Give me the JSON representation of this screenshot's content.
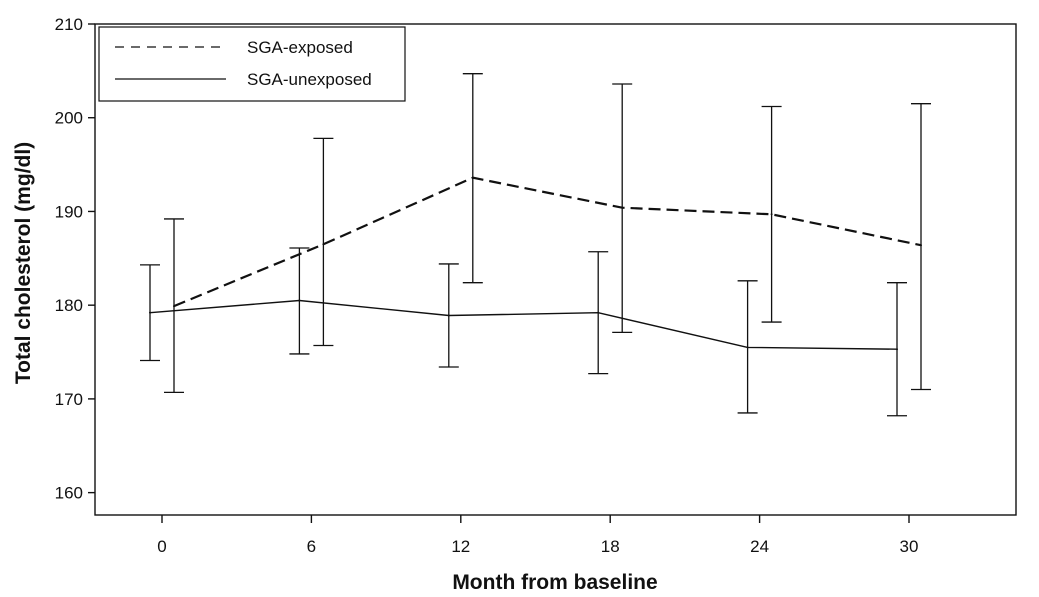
{
  "chart_data": {
    "type": "line",
    "title": "",
    "xlabel": "Month from baseline",
    "ylabel": "Total cholesterol (mg/dl)",
    "x": [
      0,
      6,
      12,
      18,
      24,
      30
    ],
    "x_tick_labels": [
      "0",
      "6",
      "12",
      "18",
      "24",
      "30"
    ],
    "y_ticks": [
      160,
      170,
      180,
      190,
      200,
      210
    ],
    "ylim": [
      159,
      210
    ],
    "grid": false,
    "legend_position": "top-left",
    "error_bars": true,
    "series": [
      {
        "name": "SGA-exposed",
        "line_style": "dashed",
        "values": [
          179.9,
          186.5,
          193.6,
          190.4,
          189.7,
          186.4
        ],
        "error_low": [
          170.7,
          175.7,
          182.4,
          177.1,
          178.2,
          171.0
        ],
        "error_high": [
          189.2,
          197.8,
          204.7,
          203.6,
          201.2,
          201.5
        ]
      },
      {
        "name": "SGA-unexposed",
        "line_style": "solid",
        "values": [
          179.2,
          180.5,
          178.9,
          179.2,
          175.5,
          175.3
        ],
        "error_low": [
          174.1,
          174.8,
          173.4,
          172.7,
          168.5,
          168.2
        ],
        "error_high": [
          184.3,
          186.1,
          184.4,
          185.7,
          182.6,
          182.4
        ]
      }
    ],
    "colors": {
      "line": "#111111",
      "background": "#ffffff"
    }
  }
}
